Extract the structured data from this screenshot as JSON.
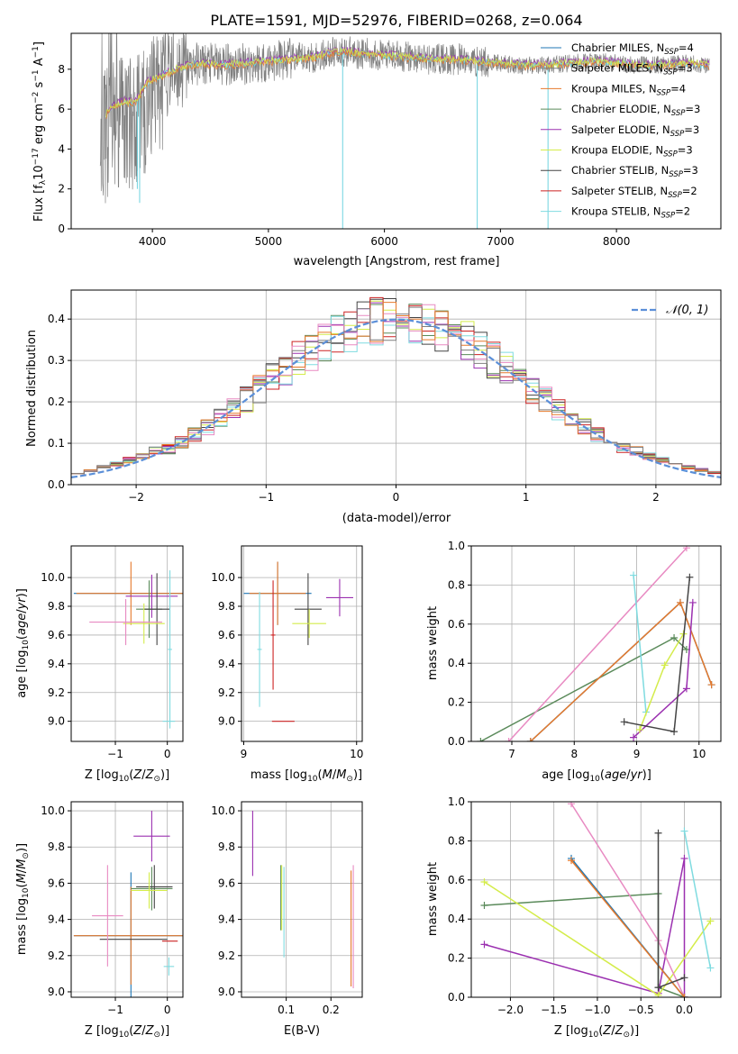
{
  "colors": {
    "chabrier_miles": "#1f77b4",
    "salpeter_miles": "#7f7f7f",
    "kroupa_miles": "#e6792b",
    "chabrier_elodie": "#5a8a5a",
    "salpeter_elodie": "#9b30b0",
    "kroupa_elodie": "#d4ec4a",
    "chabrier_stelib": "#444444",
    "salpeter_stelib": "#cc2222",
    "kroupa_stelib": "#7fdbe0",
    "pink": "#e88ac2",
    "normal_curve": "#5b8fd8",
    "spectrum": "#808080",
    "spectrum_model": "#6fd3e0",
    "grid": "#b0b0b0"
  },
  "chart_data": [
    {
      "type": "line",
      "title": "PLATE=1591, MJD=52976, FIBERID=0268, z=0.064",
      "xlabel": "wavelength [Angstrom, rest frame]",
      "ylabel": "Flux [f_λ 10^-17 erg cm^-2 s^-1 A^-1]",
      "xlim": [
        3300,
        8900
      ],
      "ylim": [
        0,
        9.8
      ],
      "xticks": [
        4000,
        5000,
        6000,
        7000,
        8000
      ],
      "yticks": [
        0,
        2,
        4,
        6,
        8
      ],
      "grid": false,
      "legend_position": "right",
      "legend": [
        {
          "text": "Chabrier MILES, N",
          "sub": "SSP",
          "tail": "=4",
          "color_key": "chabrier_miles"
        },
        {
          "text": "Salpeter MILES, N",
          "sub": "SSP",
          "tail": "=3",
          "color_key": "salpeter_miles"
        },
        {
          "text": "Kroupa MILES, N",
          "sub": "SSP",
          "tail": "=4",
          "color_key": "kroupa_miles"
        },
        {
          "text": "Chabrier ELODIE, N",
          "sub": "SSP",
          "tail": "=3",
          "color_key": "chabrier_elodie"
        },
        {
          "text": "Salpeter ELODIE, N",
          "sub": "SSP",
          "tail": "=3",
          "color_key": "salpeter_elodie"
        },
        {
          "text": "Kroupa ELODIE, N",
          "sub": "SSP",
          "tail": "=3",
          "color_key": "kroupa_elodie"
        },
        {
          "text": "Chabrier STELIB, N",
          "sub": "SSP",
          "tail": "=3",
          "color_key": "chabrier_stelib"
        },
        {
          "text": "Salpeter STELIB, N",
          "sub": "SSP",
          "tail": "=2",
          "color_key": "salpeter_stelib"
        },
        {
          "text": "Kroupa STELIB, N",
          "sub": "SSP",
          "tail": "=2",
          "color_key": "kroupa_stelib"
        }
      ],
      "continuum": {
        "x": [
          3550,
          3650,
          3750,
          3850,
          3950,
          4050,
          4200,
          4400,
          4600,
          4800,
          5000,
          5200,
          5400,
          5600,
          5800,
          6000,
          6200,
          6400,
          6600,
          6800,
          7000,
          7200,
          7400,
          7600,
          7800,
          8000,
          8200,
          8400,
          8600,
          8800
        ],
        "y": [
          5.4,
          6.1,
          6.4,
          6.3,
          7.3,
          7.6,
          8.0,
          8.3,
          8.2,
          8.3,
          8.4,
          8.5,
          8.6,
          8.9,
          8.8,
          8.7,
          8.6,
          8.5,
          8.5,
          8.4,
          8.3,
          8.2,
          8.2,
          8.3,
          8.4,
          8.3,
          8.2,
          8.2,
          8.3,
          8.2
        ]
      },
      "dips": [
        {
          "x": 3870,
          "y": 2.0
        },
        {
          "x": 3890,
          "y": 1.3
        },
        {
          "x": 5640,
          "y": 0.0
        },
        {
          "x": 6800,
          "y": 0.0
        },
        {
          "x": 7410,
          "y": 0.0
        }
      ]
    },
    {
      "type": "histogram",
      "xlabel": "(data-model)/error",
      "ylabel": "Normed distribution",
      "xlim": [
        -2.5,
        2.5
      ],
      "ylim": [
        0,
        0.47
      ],
      "xticks": [
        -2,
        -1,
        0,
        1,
        2
      ],
      "yticks": [
        0.0,
        0.1,
        0.2,
        0.3,
        0.4
      ],
      "grid": true,
      "legend": "N(0, 1)",
      "legend_position": "top-right",
      "bin_width": 0.1
    },
    {
      "type": "scatter",
      "xlabel": "Z [log10(Z/Z_sun)]",
      "ylabel": "age [log10(age/yr)]",
      "xlim": [
        -1.85,
        0.3
      ],
      "ylim": [
        8.86,
        10.22
      ],
      "xticks": [
        -1,
        0
      ],
      "yticks": [
        9.0,
        9.2,
        9.4,
        9.6,
        9.8,
        10.0
      ],
      "grid": true,
      "points": [
        {
          "x": -0.7,
          "y": 9.89,
          "xerr": 1.1,
          "yerr": 0.02,
          "color_key": "chabrier_miles"
        },
        {
          "x": -0.7,
          "y": 9.89,
          "xerr": 1.05,
          "yerr": 0.22,
          "color_key": "kroupa_miles"
        },
        {
          "x": -0.3,
          "y": 9.87,
          "xerr": 0.5,
          "yerr": 0.15,
          "color_key": "salpeter_elodie"
        },
        {
          "x": -0.35,
          "y": 9.78,
          "xerr": 0.25,
          "yerr": 0.2,
          "color_key": "chabrier_elodie"
        },
        {
          "x": -0.2,
          "y": 9.78,
          "xerr": 0.25,
          "yerr": 0.25,
          "color_key": "chabrier_stelib"
        },
        {
          "x": -0.45,
          "y": 9.68,
          "xerr": 0.4,
          "yerr": 0.14,
          "color_key": "kroupa_elodie"
        },
        {
          "x": -0.8,
          "y": 9.69,
          "xerr": 0.7,
          "yerr": 0.16,
          "color_key": "pink"
        },
        {
          "x": 0.05,
          "y": 9.5,
          "xerr": 0.04,
          "yerr": 0.55,
          "color_key": "kroupa_stelib"
        },
        {
          "x": 0.03,
          "y": 9.0,
          "xerr": 0.12,
          "yerr": 0.0,
          "color_key": "kroupa_stelib"
        }
      ]
    },
    {
      "type": "scatter",
      "xlabel": "mass [log10(M/M_sun)]",
      "xlim": [
        8.98,
        10.05
      ],
      "ylim": [
        8.86,
        10.22
      ],
      "xticks": [
        9,
        10
      ],
      "yticks": [
        9.0,
        9.2,
        9.4,
        9.6,
        9.8,
        10.0
      ],
      "grid": true,
      "points": [
        {
          "x": 9.3,
          "y": 9.89,
          "xerr": 0.3,
          "yerr": 0.22,
          "color_key": "chabrier_miles"
        },
        {
          "x": 9.3,
          "y": 9.89,
          "xerr": 0.25,
          "yerr": 0.22,
          "color_key": "kroupa_miles"
        },
        {
          "x": 9.85,
          "y": 9.86,
          "xerr": 0.12,
          "yerr": 0.13,
          "color_key": "salpeter_elodie"
        },
        {
          "x": 9.57,
          "y": 9.78,
          "xerr": 0.12,
          "yerr": 0.25,
          "color_key": "chabrier_stelib"
        },
        {
          "x": 9.58,
          "y": 9.68,
          "xerr": 0.15,
          "yerr": 0.1,
          "color_key": "kroupa_elodie"
        },
        {
          "x": 9.26,
          "y": 9.6,
          "xerr": 0.02,
          "yerr": 0.38,
          "color_key": "salpeter_stelib"
        },
        {
          "x": 9.14,
          "y": 9.5,
          "xerr": 0.02,
          "yerr": 0.4,
          "color_key": "kroupa_stelib"
        },
        {
          "x": 9.35,
          "y": 9.0,
          "xerr": 0.1,
          "yerr": 0.0,
          "color_key": "salpeter_stelib"
        }
      ]
    },
    {
      "type": "line",
      "xlabel": "age [log10(age/yr)]",
      "ylabel": "mass weight",
      "xlim": [
        6.35,
        10.35
      ],
      "ylim": [
        0,
        1
      ],
      "xticks": [
        7,
        8,
        9,
        10
      ],
      "yticks": [
        0.0,
        0.2,
        0.4,
        0.6,
        0.8,
        1.0
      ],
      "grid": true,
      "series": [
        {
          "color_key": "chabrier_elodie",
          "x": [
            6.5,
            9.6,
            9.8
          ],
          "y": [
            0.0,
            0.53,
            0.47
          ]
        },
        {
          "color_key": "pink",
          "x": [
            6.95,
            9.8
          ],
          "y": [
            0.0,
            0.99
          ]
        },
        {
          "color_key": "chabrier_miles",
          "x": [
            7.3,
            9.7,
            10.2
          ],
          "y": [
            0.0,
            0.71,
            0.29
          ]
        },
        {
          "color_key": "kroupa_miles",
          "x": [
            7.3,
            9.7,
            10.2
          ],
          "y": [
            0.0,
            0.71,
            0.29
          ]
        },
        {
          "color_key": "kroupa_stelib",
          "x": [
            8.95,
            9.15
          ],
          "y": [
            0.85,
            0.15
          ]
        },
        {
          "color_key": "salpeter_elodie",
          "x": [
            8.95,
            9.8,
            9.9
          ],
          "y": [
            0.02,
            0.27,
            0.71
          ]
        },
        {
          "color_key": "kroupa_elodie",
          "x": [
            9.05,
            9.45,
            9.75
          ],
          "y": [
            0.06,
            0.39,
            0.55
          ]
        },
        {
          "color_key": "chabrier_stelib",
          "x": [
            8.8,
            9.6,
            9.85
          ],
          "y": [
            0.1,
            0.05,
            0.84
          ]
        }
      ]
    },
    {
      "type": "scatter",
      "xlabel": "Z [log10(Z/Z_sun)]",
      "ylabel": "mass [log10(M/M_sun)]",
      "xlim": [
        -1.85,
        0.3
      ],
      "ylim": [
        8.97,
        10.05
      ],
      "xticks": [
        -1,
        0
      ],
      "yticks": [
        9.0,
        9.2,
        9.4,
        9.6,
        9.8,
        10.0
      ],
      "grid": true,
      "points": [
        {
          "x": -0.7,
          "y": 9.31,
          "xerr": 1.1,
          "yerr": 0.35,
          "color_key": "chabrier_miles"
        },
        {
          "x": -0.7,
          "y": 9.31,
          "xerr": 1.1,
          "yerr": 0.27,
          "color_key": "kroupa_miles"
        },
        {
          "x": -0.65,
          "y": 9.29,
          "xerr": 0.65,
          "yerr": 0.0,
          "color_key": "chabrier_stelib"
        },
        {
          "x": -1.15,
          "y": 9.42,
          "xerr": 0.3,
          "yerr": 0.28,
          "color_key": "pink"
        },
        {
          "x": -0.3,
          "y": 9.57,
          "xerr": 0.4,
          "yerr": 0.12,
          "color_key": "chabrier_elodie"
        },
        {
          "x": -0.25,
          "y": 9.58,
          "xerr": 0.35,
          "yerr": 0.12,
          "color_key": "chabrier_stelib"
        },
        {
          "x": -0.35,
          "y": 9.56,
          "xerr": 0.35,
          "yerr": 0.1,
          "color_key": "kroupa_elodie"
        },
        {
          "x": -0.3,
          "y": 9.86,
          "xerr": 0.35,
          "yerr": 0.14,
          "color_key": "salpeter_elodie"
        },
        {
          "x": 0.05,
          "y": 9.28,
          "xerr": 0.15,
          "yerr": 0.0,
          "color_key": "salpeter_stelib"
        },
        {
          "x": 0.03,
          "y": 9.14,
          "xerr": 0.1,
          "yerr": 0.05,
          "color_key": "kroupa_stelib"
        }
      ]
    },
    {
      "type": "scatter",
      "xlabel": "E(B-V)",
      "xlim": [
        0.0,
        0.27
      ],
      "ylim": [
        8.97,
        10.05
      ],
      "xticks": [
        0.1,
        0.2
      ],
      "yticks": [
        9.0,
        9.2,
        9.4,
        9.6,
        9.8,
        10.0
      ],
      "grid": true,
      "points": [
        {
          "x": 0.025,
          "y": 9.82,
          "yerr": 0.18,
          "color_key": "salpeter_elodie"
        },
        {
          "x": 0.088,
          "y": 9.52,
          "yerr": 0.18,
          "color_key": "chabrier_elodie"
        },
        {
          "x": 0.09,
          "y": 9.52,
          "yerr": 0.18,
          "color_key": "kroupa_elodie"
        },
        {
          "x": 0.095,
          "y": 9.44,
          "yerr": 0.25,
          "color_key": "kroupa_stelib"
        },
        {
          "x": 0.245,
          "y": 9.35,
          "yerr": 0.32,
          "color_key": "kroupa_miles"
        },
        {
          "x": 0.25,
          "y": 9.36,
          "yerr": 0.34,
          "color_key": "pink"
        }
      ]
    },
    {
      "type": "line",
      "xlabel": "Z [log10(Z/Z_sun)]",
      "ylabel": "mass weight",
      "xlim": [
        -2.45,
        0.42
      ],
      "ylim": [
        0,
        1
      ],
      "xticks": [
        -2.0,
        -1.5,
        -1.0,
        -0.5,
        0.0
      ],
      "yticks": [
        0.0,
        0.2,
        0.4,
        0.6,
        0.8,
        1.0
      ],
      "grid": true,
      "series": [
        {
          "color_key": "chabrier_elodie",
          "x": [
            -2.3,
            -0.3,
            -0.3,
            0.0
          ],
          "y": [
            0.47,
            0.53,
            0.05,
            0.0
          ]
        },
        {
          "color_key": "salpeter_elodie",
          "x": [
            -2.3,
            -0.3,
            0.0,
            0.0
          ],
          "y": [
            0.27,
            0.02,
            0.71,
            0.0
          ]
        },
        {
          "color_key": "kroupa_elodie",
          "x": [
            -2.3,
            -0.3,
            0.3
          ],
          "y": [
            0.59,
            0.01,
            0.39
          ]
        },
        {
          "color_key": "pink",
          "x": [
            -1.3,
            -0.3,
            0.0
          ],
          "y": [
            0.99,
            0.29,
            0.0
          ]
        },
        {
          "color_key": "chabrier_miles",
          "x": [
            -1.3,
            0.0
          ],
          "y": [
            0.71,
            0.0
          ]
        },
        {
          "color_key": "kroupa_miles",
          "x": [
            -1.3,
            0.0
          ],
          "y": [
            0.7,
            0.0
          ]
        },
        {
          "color_key": "chabrier_stelib",
          "x": [
            -0.3,
            -0.3,
            0.0
          ],
          "y": [
            0.84,
            0.05,
            0.1
          ]
        },
        {
          "color_key": "kroupa_stelib",
          "x": [
            0.0,
            0.3
          ],
          "y": [
            0.85,
            0.15
          ]
        }
      ]
    }
  ]
}
